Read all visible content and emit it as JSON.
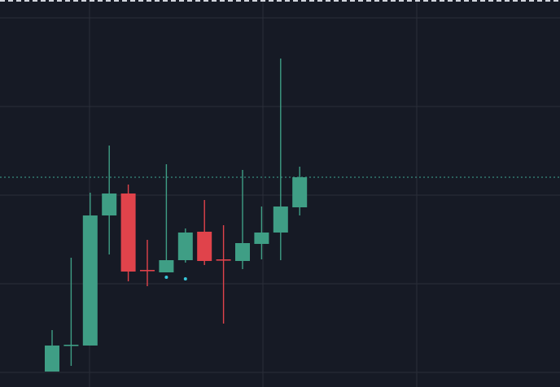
{
  "chart_data": {
    "type": "candlestick",
    "title": "",
    "xlabel": "",
    "ylabel": "",
    "colors": {
      "background": "#161a25",
      "grid": "#2a2e39",
      "up": "#3f9e85",
      "down": "#e0434b",
      "price_line": "#3fa594",
      "marker": "#36c6d9",
      "top_band": "#d1d4dc"
    },
    "grid": true,
    "ylim": [
      0,
      476
    ],
    "current_price": 258,
    "candles": [
      {
        "open": 19,
        "high": 70,
        "low": 19,
        "close": 51
      },
      {
        "open": 52,
        "high": 159,
        "low": 26,
        "close": 52
      },
      {
        "open": 51,
        "high": 239,
        "low": 51,
        "close": 211
      },
      {
        "open": 211,
        "high": 297,
        "low": 163,
        "close": 238
      },
      {
        "open": 238,
        "high": 249,
        "low": 130,
        "close": 142
      },
      {
        "open": 144,
        "high": 181,
        "low": 124,
        "close": 143
      },
      {
        "open": 141,
        "high": 274,
        "low": 141,
        "close": 156
      },
      {
        "open": 156,
        "high": 195,
        "low": 153,
        "close": 190
      },
      {
        "open": 191,
        "high": 230,
        "low": 150,
        "close": 155
      },
      {
        "open": 157,
        "high": 199,
        "low": 78,
        "close": 156
      },
      {
        "open": 155,
        "high": 267,
        "low": 145,
        "close": 177
      },
      {
        "open": 176,
        "high": 222,
        "low": 157,
        "close": 190
      },
      {
        "open": 190,
        "high": 404,
        "low": 156,
        "close": 222
      },
      {
        "open": 221,
        "high": 271,
        "low": 211,
        "close": 258
      }
    ],
    "markers": [
      {
        "candle": 6,
        "value": 135
      },
      {
        "candle": 7,
        "value": 133
      }
    ]
  }
}
